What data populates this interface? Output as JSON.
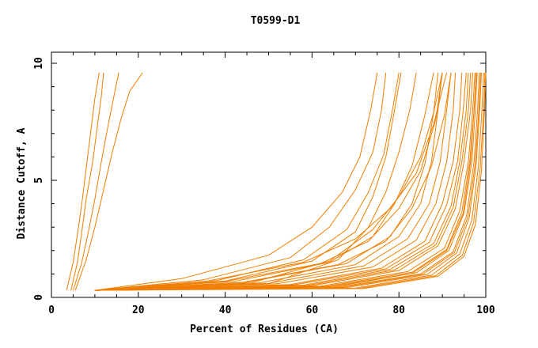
{
  "chart_data": {
    "type": "line",
    "title": "T0599-D1",
    "xlabel": "Percent of Residues (CA)",
    "ylabel": "Distance Cutoff, A",
    "xlim": [
      0,
      100
    ],
    "ylim": [
      0,
      10
    ],
    "xticks": [
      0,
      20,
      40,
      60,
      80,
      100
    ],
    "yticks": [
      0,
      5,
      10
    ],
    "grid": false,
    "line_color": "#f07f00",
    "series": [
      {
        "x": [
          3.5,
          5,
          6,
          7,
          8,
          9,
          10,
          11
        ],
        "y": [
          0.3,
          1.5,
          2.7,
          4,
          5.5,
          7,
          8.5,
          9.6
        ]
      },
      {
        "x": [
          4.5,
          6,
          7,
          8,
          9.5,
          10.5,
          11.5,
          12
        ],
        "y": [
          0.3,
          1.5,
          2.8,
          4.2,
          5.8,
          7.2,
          8.6,
          9.6
        ]
      },
      {
        "x": [
          5,
          7,
          8.5,
          10,
          11.5,
          13,
          14.5,
          15.5
        ],
        "y": [
          0.3,
          1.5,
          2.8,
          4.2,
          5.8,
          7.3,
          8.7,
          9.6
        ]
      },
      {
        "x": [
          5.5,
          8,
          10,
          12,
          14,
          16,
          18,
          21
        ],
        "y": [
          0.3,
          1.6,
          3,
          4.6,
          6.2,
          7.6,
          8.8,
          9.6
        ]
      },
      {
        "x": [
          10,
          30,
          50,
          60,
          67,
          71,
          73.5,
          75
        ],
        "y": [
          0.3,
          0.8,
          1.8,
          3,
          4.5,
          6,
          8,
          9.6
        ]
      },
      {
        "x": [
          10,
          35,
          55,
          64,
          70,
          74,
          76,
          77
        ],
        "y": [
          0.3,
          0.75,
          1.7,
          3,
          4.6,
          6.2,
          8,
          9.6
        ]
      },
      {
        "x": [
          10,
          38,
          58,
          68,
          73,
          76.5,
          78.5,
          80
        ],
        "y": [
          0.3,
          0.72,
          1.6,
          2.9,
          4.5,
          6.1,
          8,
          9.6
        ]
      },
      {
        "x": [
          10,
          40,
          60,
          70,
          74,
          77,
          79,
          80.5
        ],
        "y": [
          0.3,
          0.7,
          1.55,
          2.8,
          4.3,
          6,
          8,
          9.6
        ]
      },
      {
        "x": [
          10,
          42,
          64,
          74,
          79,
          83,
          86,
          88
        ],
        "y": [
          0.3,
          0.68,
          1.5,
          2.6,
          4,
          5.6,
          7.8,
          9.6
        ]
      },
      {
        "x": [
          10,
          45,
          68,
          78,
          83,
          86,
          88,
          89
        ],
        "y": [
          0.3,
          0.65,
          1.45,
          2.6,
          4,
          5.7,
          7.9,
          9.6
        ]
      },
      {
        "x": [
          10,
          48,
          70,
          80,
          85,
          87.5,
          89,
          90
        ],
        "y": [
          0.3,
          0.62,
          1.4,
          2.6,
          4,
          5.8,
          8,
          9.6
        ]
      },
      {
        "x": [
          10,
          50,
          72,
          82,
          87,
          89.5,
          91,
          92
        ],
        "y": [
          0.3,
          0.6,
          1.35,
          2.5,
          4,
          5.8,
          8,
          9.6
        ]
      },
      {
        "x": [
          10,
          52,
          74,
          84,
          88.5,
          91,
          92.5,
          93
        ],
        "y": [
          0.3,
          0.58,
          1.3,
          2.45,
          4,
          5.8,
          8,
          9.6
        ]
      },
      {
        "x": [
          10,
          55,
          76,
          86,
          90,
          92.5,
          94,
          94.5
        ],
        "y": [
          0.3,
          0.55,
          1.25,
          2.4,
          4,
          5.8,
          8,
          9.6
        ]
      },
      {
        "x": [
          10,
          58,
          78,
          88,
          92,
          94,
          95.5,
          96
        ],
        "y": [
          0.3,
          0.52,
          1.2,
          2.3,
          3.9,
          5.8,
          8,
          9.6
        ]
      },
      {
        "x": [
          10,
          60,
          80,
          89,
          93,
          95,
          96.5,
          97
        ],
        "y": [
          0.3,
          0.5,
          1.15,
          2.2,
          3.8,
          5.8,
          8,
          9.6
        ]
      },
      {
        "x": [
          10,
          62,
          82,
          90.5,
          94,
          96,
          97,
          97.5
        ],
        "y": [
          0.3,
          0.48,
          1.1,
          2.1,
          3.7,
          5.8,
          8,
          9.6
        ]
      },
      {
        "x": [
          10,
          64,
          84,
          91.5,
          95,
          96.8,
          97.6,
          98
        ],
        "y": [
          0.3,
          0.46,
          1.05,
          2,
          3.6,
          5.8,
          8,
          9.6
        ]
      },
      {
        "x": [
          10,
          66,
          85,
          92.5,
          95.6,
          97.3,
          98.1,
          98.5
        ],
        "y": [
          0.3,
          0.44,
          1,
          1.95,
          3.5,
          5.8,
          8,
          9.6
        ]
      },
      {
        "x": [
          10,
          68,
          86.5,
          93.3,
          96.2,
          97.8,
          98.6,
          99
        ],
        "y": [
          0.3,
          0.42,
          0.98,
          1.9,
          3.4,
          5.7,
          8,
          9.6
        ]
      },
      {
        "x": [
          10,
          70,
          87.5,
          94,
          96.8,
          98.3,
          99.1,
          99.5
        ],
        "y": [
          0.3,
          0.4,
          0.95,
          1.85,
          3.3,
          5.6,
          8,
          9.6
        ]
      },
      {
        "x": [
          10,
          71,
          88.5,
          94.6,
          97.2,
          98.7,
          99.5,
          99.8
        ],
        "y": [
          0.3,
          0.39,
          0.93,
          1.8,
          3.2,
          5.5,
          8,
          9.6
        ]
      },
      {
        "x": [
          10,
          72,
          89,
          95,
          97.6,
          99,
          99.7,
          100
        ],
        "y": [
          0.3,
          0.38,
          0.9,
          1.75,
          3.1,
          5.4,
          8,
          9.6
        ]
      },
      {
        "x": [
          10,
          65,
          83,
          91,
          94.8,
          96.5,
          97.3,
          97.8
        ],
        "y": [
          0.3,
          0.45,
          1.02,
          2,
          3.6,
          5.8,
          8,
          9.6
        ]
      },
      {
        "x": [
          10,
          67,
          85.5,
          92.8,
          95.9,
          97.6,
          98.4,
          98.8
        ],
        "y": [
          0.3,
          0.43,
          0.99,
          1.92,
          3.45,
          5.75,
          8,
          9.6
        ]
      },
      {
        "x": [
          10,
          56,
          77,
          87,
          91,
          93.5,
          94.8,
          95.5
        ],
        "y": [
          0.3,
          0.54,
          1.22,
          2.35,
          3.95,
          5.8,
          8,
          9.6
        ]
      },
      {
        "x": [
          10,
          59,
          79,
          88.5,
          92.5,
          94.5,
          96,
          96.5
        ],
        "y": [
          0.3,
          0.51,
          1.17,
          2.25,
          3.85,
          5.8,
          8,
          9.6
        ]
      },
      {
        "x": [
          10,
          63,
          83,
          91,
          94.5,
          96.3,
          97.3,
          97.8
        ],
        "y": [
          0.3,
          0.47,
          1.07,
          2.05,
          3.65,
          5.8,
          8,
          9.6
        ]
      },
      {
        "x": [
          10,
          36,
          58,
          70,
          78,
          84,
          88,
          91
        ],
        "y": [
          0.3,
          0.7,
          1.5,
          2.5,
          3.8,
          5.3,
          7.4,
          9.6
        ]
      },
      {
        "x": [
          10,
          40,
          62,
          73,
          80,
          85,
          88.5,
          90
        ],
        "y": [
          0.3,
          0.68,
          1.45,
          2.4,
          3.8,
          5.4,
          7.6,
          9.6
        ]
      },
      {
        "x": [
          10,
          44,
          66,
          77,
          83,
          87.5,
          90.5,
          92
        ],
        "y": [
          0.3,
          0.64,
          1.4,
          2.4,
          3.8,
          5.6,
          7.8,
          9.6
        ]
      },
      {
        "x": [
          10,
          46,
          64,
          74,
          80,
          85,
          88,
          90
        ],
        "y": [
          0.3,
          0.62,
          1.55,
          2.9,
          4.3,
          6,
          7.9,
          9.6
        ]
      },
      {
        "x": [
          10,
          50,
          66,
          73,
          77,
          80,
          82.5,
          84
        ],
        "y": [
          0.3,
          0.58,
          1.6,
          3,
          4.5,
          6.2,
          8,
          9.6
        ]
      }
    ]
  }
}
